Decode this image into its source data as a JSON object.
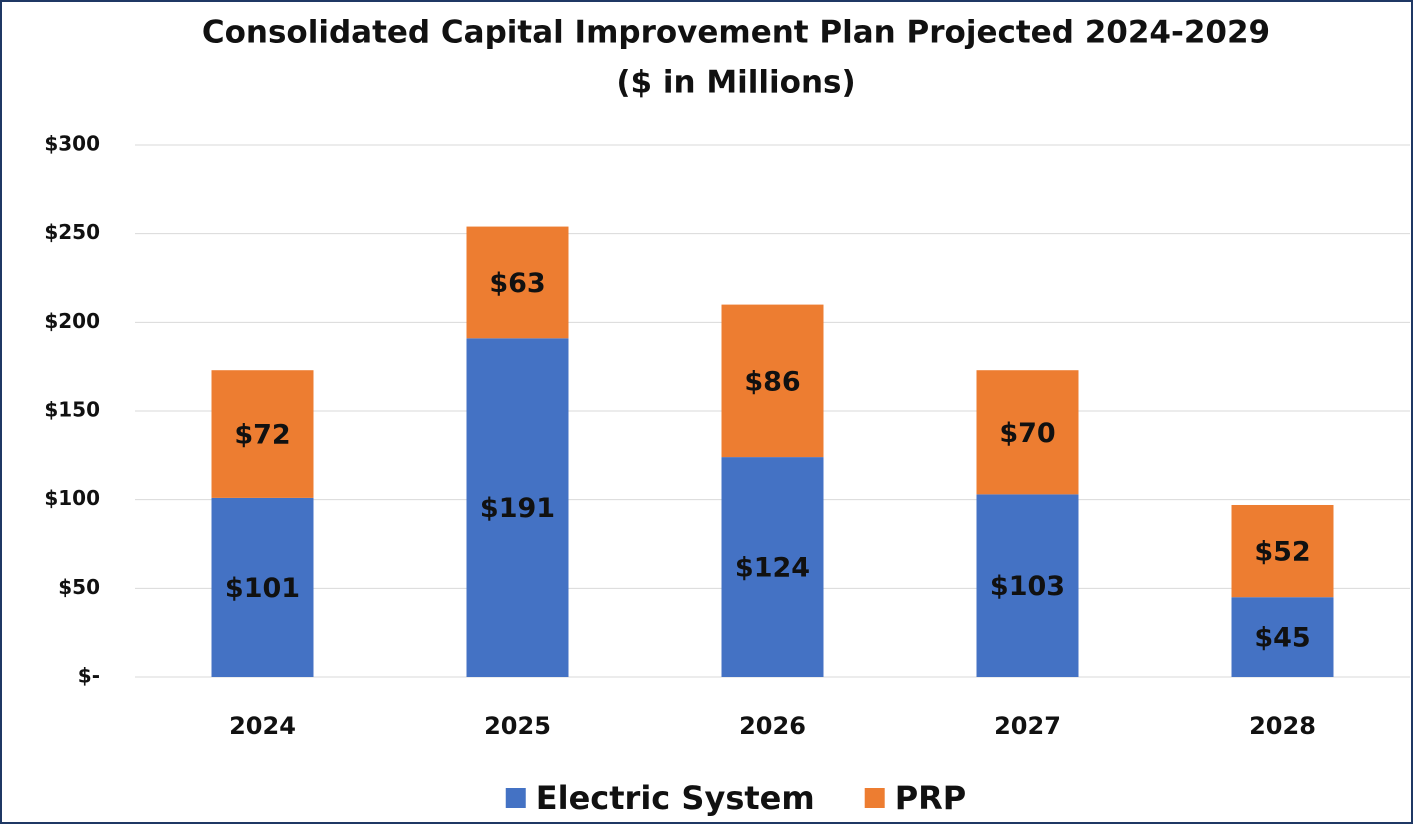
{
  "chart_data": {
    "type": "stacked_bar",
    "title": "Consolidated Capital Improvement Plan Projected 2024-2029",
    "subtitle": "($ in Millions)",
    "categories": [
      "2024",
      "2025",
      "2026",
      "2027",
      "2028"
    ],
    "series": [
      {
        "name": "Electric System",
        "color": "#4472c4",
        "values": [
          101,
          191,
          124,
          103,
          45
        ],
        "value_labels": [
          "$101",
          "$191",
          "$124",
          "$103",
          "$45"
        ]
      },
      {
        "name": "PRP",
        "color": "#ed7d31",
        "values": [
          72,
          63,
          86,
          70,
          52
        ],
        "value_labels": [
          "$72",
          "$63",
          "$86",
          "$70",
          "$52"
        ]
      }
    ],
    "ylim": [
      0,
      300
    ],
    "yticks": [
      {
        "value": 0,
        "label": "$-"
      },
      {
        "value": 50,
        "label": "$50"
      },
      {
        "value": 100,
        "label": "$100"
      },
      {
        "value": 150,
        "label": "$150"
      },
      {
        "value": 200,
        "label": "$200"
      },
      {
        "value": 250,
        "label": "$250"
      },
      {
        "value": 300,
        "label": "$300"
      }
    ],
    "grid": true,
    "legend": "bottom"
  }
}
